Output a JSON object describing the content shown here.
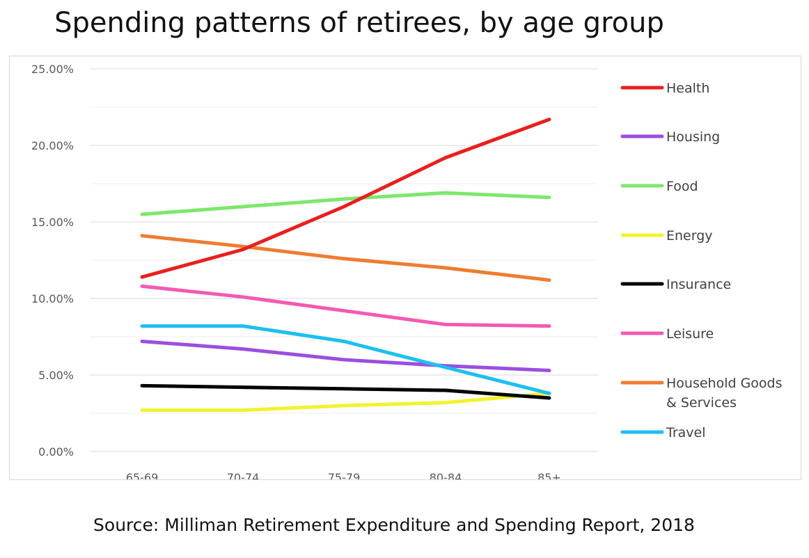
{
  "title": "Spending patterns of retirees, by age group",
  "source": "Source: Milliman Retirement Expenditure and Spending Report, 2018",
  "chart_data": {
    "type": "line",
    "categories": [
      "65-69",
      "70-74",
      "75-79",
      "80-84",
      "85+"
    ],
    "ylim": [
      0,
      25
    ],
    "yticks": [
      "0.00%",
      "5.00%",
      "10.00%",
      "15.00%",
      "20.00%",
      "25.00%"
    ],
    "grid": true,
    "legend_position": "right",
    "series": [
      {
        "name": "Health",
        "color": "#e8201f",
        "values": [
          11.4,
          13.2,
          16.0,
          19.2,
          21.7
        ]
      },
      {
        "name": "Housing",
        "color": "#9a4fe0",
        "values": [
          7.2,
          6.7,
          6.0,
          5.6,
          5.3
        ]
      },
      {
        "name": "Food",
        "color": "#7ee76b",
        "values": [
          15.5,
          16.0,
          16.5,
          16.9,
          16.6
        ]
      },
      {
        "name": "Energy",
        "color": "#f2f230",
        "values": [
          2.7,
          2.7,
          3.0,
          3.2,
          3.8
        ]
      },
      {
        "name": "Insurance",
        "color": "#000000",
        "values": [
          4.3,
          4.2,
          4.1,
          4.0,
          3.5
        ]
      },
      {
        "name": "Leisure",
        "color": "#f25ab3",
        "values": [
          10.8,
          10.1,
          9.2,
          8.3,
          8.2
        ]
      },
      {
        "name": "Household Goods & Services",
        "label_lines": [
          "Household Goods",
          "& Services"
        ],
        "color": "#ed7d31",
        "values": [
          14.1,
          13.4,
          12.6,
          12.0,
          11.2
        ]
      },
      {
        "name": "Travel",
        "color": "#1dbff0",
        "values": [
          8.2,
          8.2,
          7.2,
          5.5,
          3.8
        ]
      }
    ]
  }
}
